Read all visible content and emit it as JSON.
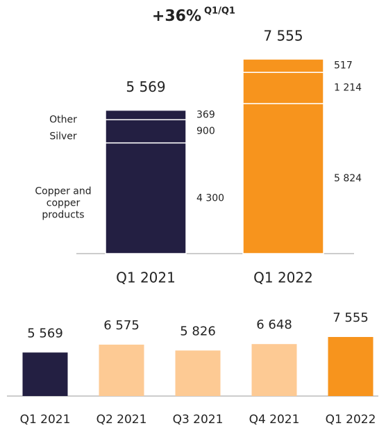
{
  "chart_data": [
    {
      "type": "stacked_bar",
      "annotation": "+36%",
      "annotation_note": "Q1/Q1",
      "categories": [
        "Q1 2021",
        "Q1 2022"
      ],
      "colors": [
        "#231f42",
        "#f7941d"
      ],
      "total_labels": [
        "5 569",
        "7 555"
      ],
      "series": [
        {
          "name": "Copper and copper products",
          "values": [
            4300,
            5824
          ],
          "value_labels": [
            "4 300",
            "5 824"
          ]
        },
        {
          "name": "Silver",
          "values": [
            900,
            1214
          ],
          "value_labels": [
            "900",
            "1 214"
          ]
        },
        {
          "name": "Other",
          "values": [
            369,
            517
          ],
          "value_labels": [
            "369",
            "517"
          ]
        }
      ]
    },
    {
      "type": "bar",
      "categories": [
        "Q1 2021",
        "Q2 2021",
        "Q3 2021",
        "Q4 2021",
        "Q1 2022"
      ],
      "values": [
        5569,
        6575,
        5826,
        6648,
        7555
      ],
      "value_labels": [
        "5 569",
        "6 575",
        "5 826",
        "6 648",
        "7 555"
      ],
      "colors": [
        "#231f42",
        "#fdca94",
        "#fdca94",
        "#fdca94",
        "#f7941d"
      ]
    }
  ]
}
